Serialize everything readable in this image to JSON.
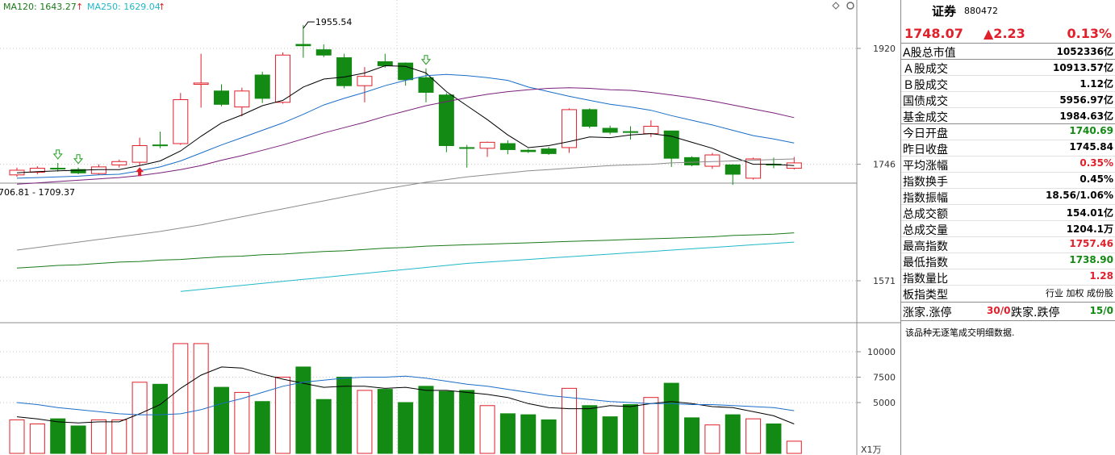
{
  "legend": {
    "ma120_label": "MA120: 1643.27",
    "ma250_label": "MA250: 1629.04",
    "ma120_color": "#1a7a1a",
    "ma250_color": "#20b8c8"
  },
  "chart_icons": [
    "diamond-icon",
    "gear-icon"
  ],
  "price_axis": {
    "ticks": [
      "1920",
      "1746",
      "1571"
    ],
    "tick_values": [
      1920,
      1746,
      1571
    ],
    "ylim": [
      1500,
      2000
    ]
  },
  "annotations": {
    "high_label": "1955.54",
    "range_label": "706.81 - 1709.37"
  },
  "volume_axis": {
    "ticks": [
      "10000",
      "7500",
      "5000"
    ],
    "tick_values": [
      10000,
      7500,
      5000
    ],
    "unit": "X1万"
  },
  "chart_data": {
    "type": "candlestick",
    "candles": [
      {
        "o": 1730,
        "c": 1737,
        "h": 1741,
        "l": 1727,
        "up": true,
        "v": 3300
      },
      {
        "o": 1734,
        "c": 1740,
        "h": 1743,
        "l": 1731,
        "up": true,
        "v": 2900
      },
      {
        "o": 1740,
        "c": 1740,
        "h": 1748,
        "l": 1735,
        "up": false,
        "v": 3400
      },
      {
        "o": 1738,
        "c": 1733,
        "h": 1741,
        "l": 1731,
        "up": false,
        "v": 2700
      },
      {
        "o": 1732,
        "c": 1742,
        "h": 1746,
        "l": 1730,
        "up": true,
        "v": 3300
      },
      {
        "o": 1745,
        "c": 1750,
        "h": 1753,
        "l": 1741,
        "up": true,
        "v": 3300
      },
      {
        "o": 1749,
        "c": 1774,
        "h": 1786,
        "l": 1744,
        "up": true,
        "v": 7000
      },
      {
        "o": 1775,
        "c": 1775,
        "h": 1795,
        "l": 1770,
        "up": false,
        "v": 6800
      },
      {
        "o": 1777,
        "c": 1843,
        "h": 1853,
        "l": 1775,
        "up": true,
        "v": 10800
      },
      {
        "o": 1866,
        "c": 1868,
        "h": 1912,
        "l": 1831,
        "up": true,
        "v": 10800
      },
      {
        "o": 1856,
        "c": 1836,
        "h": 1866,
        "l": 1833,
        "up": false,
        "v": 6500
      },
      {
        "o": 1832,
        "c": 1856,
        "h": 1861,
        "l": 1818,
        "up": true,
        "v": 6000
      },
      {
        "o": 1880,
        "c": 1845,
        "h": 1885,
        "l": 1838,
        "up": false,
        "v": 5100
      },
      {
        "o": 1839,
        "c": 1910,
        "h": 1914,
        "l": 1837,
        "up": true,
        "v": 7500
      },
      {
        "o": 1924,
        "c": 1926,
        "h": 1955,
        "l": 1906,
        "up": false,
        "v": 8500
      },
      {
        "o": 1918,
        "c": 1910,
        "h": 1926,
        "l": 1907,
        "up": false,
        "v": 5300
      },
      {
        "o": 1906,
        "c": 1864,
        "h": 1912,
        "l": 1860,
        "up": false,
        "v": 7500
      },
      {
        "o": 1864,
        "c": 1878,
        "h": 1892,
        "l": 1839,
        "up": true,
        "v": 6200
      },
      {
        "o": 1900,
        "c": 1894,
        "h": 1912,
        "l": 1891,
        "up": false,
        "v": 6300
      },
      {
        "o": 1898,
        "c": 1873,
        "h": 1899,
        "l": 1864,
        "up": false,
        "v": 5000
      },
      {
        "o": 1876,
        "c": 1854,
        "h": 1890,
        "l": 1839,
        "up": false,
        "v": 6600
      },
      {
        "o": 1850,
        "c": 1774,
        "h": 1853,
        "l": 1764,
        "up": false,
        "v": 6100
      },
      {
        "o": 1771,
        "c": 1771,
        "h": 1775,
        "l": 1741,
        "up": false,
        "v": 6200
      },
      {
        "o": 1770,
        "c": 1779,
        "h": 1780,
        "l": 1757,
        "up": true,
        "v": 4700
      },
      {
        "o": 1777,
        "c": 1768,
        "h": 1782,
        "l": 1761,
        "up": false,
        "v": 3900
      },
      {
        "o": 1767,
        "c": 1765,
        "h": 1769,
        "l": 1763,
        "up": false,
        "v": 3800
      },
      {
        "o": 1769,
        "c": 1762,
        "h": 1772,
        "l": 1760,
        "up": false,
        "v": 3300
      },
      {
        "o": 1771,
        "c": 1828,
        "h": 1830,
        "l": 1763,
        "up": true,
        "v": 6400
      },
      {
        "o": 1828,
        "c": 1803,
        "h": 1830,
        "l": 1800,
        "up": false,
        "v": 4700
      },
      {
        "o": 1800,
        "c": 1794,
        "h": 1804,
        "l": 1791,
        "up": false,
        "v": 3600
      },
      {
        "o": 1795,
        "c": 1795,
        "h": 1803,
        "l": 1783,
        "up": false,
        "v": 4800
      },
      {
        "o": 1792,
        "c": 1803,
        "h": 1812,
        "l": 1787,
        "up": true,
        "v": 5500
      },
      {
        "o": 1796,
        "c": 1755,
        "h": 1796,
        "l": 1742,
        "up": false,
        "v": 6900
      },
      {
        "o": 1756,
        "c": 1745,
        "h": 1758,
        "l": 1743,
        "up": false,
        "v": 3500
      },
      {
        "o": 1743,
        "c": 1760,
        "h": 1763,
        "l": 1739,
        "up": true,
        "v": 2800
      },
      {
        "o": 1745,
        "c": 1731,
        "h": 1746,
        "l": 1715,
        "up": false,
        "v": 3800
      },
      {
        "o": 1725,
        "c": 1754,
        "h": 1756,
        "l": 1723,
        "up": true,
        "v": 3400
      },
      {
        "o": 1746,
        "c": 1745,
        "h": 1756,
        "l": 1740,
        "up": false,
        "v": 2900
      },
      {
        "o": 1740,
        "c": 1748,
        "h": 1757,
        "l": 1738,
        "up": true,
        "v": 1200
      }
    ],
    "ma_price": [
      {
        "name": "MA5",
        "color": "#000000",
        "values": [
          1733,
          1735,
          1736,
          1737,
          1738,
          1738,
          1744,
          1751,
          1766,
          1788,
          1808,
          1820,
          1834,
          1842,
          1862,
          1874,
          1877,
          1883,
          1894,
          1893,
          1883,
          1855,
          1834,
          1813,
          1790,
          1771,
          1774,
          1780,
          1787,
          1786,
          1790,
          1792,
          1788,
          1779,
          1770,
          1757,
          1746,
          1746,
          1744
        ]
      },
      {
        "name": "MA10",
        "color": "#1a6ec8",
        "values": [
          1725,
          1726,
          1727,
          1728,
          1730,
          1731,
          1736,
          1742,
          1751,
          1763,
          1775,
          1786,
          1797,
          1808,
          1821,
          1835,
          1845,
          1854,
          1864,
          1872,
          1879,
          1881,
          1879,
          1876,
          1872,
          1862,
          1855,
          1848,
          1842,
          1836,
          1832,
          1827,
          1819,
          1812,
          1805,
          1797,
          1789,
          1784,
          1778
        ]
      },
      {
        "name": "MA20",
        "color": "#7a1f7a",
        "values": [
          1716,
          1718,
          1720,
          1722,
          1724,
          1726,
          1729,
          1733,
          1738,
          1744,
          1752,
          1759,
          1767,
          1775,
          1784,
          1793,
          1801,
          1809,
          1818,
          1826,
          1834,
          1840,
          1846,
          1851,
          1855,
          1858,
          1860,
          1861,
          1860,
          1858,
          1857,
          1854,
          1850,
          1846,
          1841,
          1835,
          1829,
          1823,
          1816
        ]
      },
      {
        "name": "MA60",
        "color": "#8c8c8c",
        "values": [
          1617,
          1621,
          1625,
          1629,
          1633,
          1637,
          1641,
          1645,
          1650,
          1655,
          1661,
          1667,
          1673,
          1679,
          1685,
          1691,
          1697,
          1703,
          1709,
          1714,
          1719,
          1723,
          1727,
          1730,
          1733,
          1736,
          1738,
          1740,
          1742,
          1744,
          1745,
          1746,
          1748,
          1749,
          1750,
          1751,
          1752,
          1753,
          1754
        ]
      },
      {
        "name": "MA120",
        "color": "#1a7a1a",
        "values": [
          1590,
          1592,
          1594,
          1595,
          1597,
          1599,
          1600,
          1602,
          1603,
          1605,
          1607,
          1608,
          1610,
          1611,
          1613,
          1615,
          1616,
          1618,
          1620,
          1621,
          1623,
          1624,
          1625,
          1626,
          1627,
          1628,
          1629,
          1630,
          1631,
          1632,
          1633,
          1634,
          1635,
          1636,
          1637,
          1639,
          1640,
          1641,
          1643
        ]
      },
      {
        "name": "MA250",
        "color": "#20b8c8",
        "values": [
          null,
          null,
          null,
          null,
          null,
          null,
          null,
          null,
          1555,
          1558,
          1561,
          1564,
          1567,
          1570,
          1573,
          1576,
          1579,
          1582,
          1585,
          1588,
          1591,
          1594,
          1597,
          1599,
          1601,
          1603,
          1605,
          1607,
          1609,
          1611,
          1613,
          1615,
          1617,
          1619,
          1621,
          1623,
          1625,
          1627,
          1629
        ]
      }
    ],
    "ma_volume": [
      {
        "name": "VMA5",
        "color": "#000000",
        "values": [
          3600,
          3400,
          3100,
          3000,
          3100,
          3100,
          3900,
          4800,
          6400,
          7700,
          8500,
          8400,
          7800,
          7300,
          6900,
          6500,
          6600,
          6600,
          6400,
          6500,
          6200,
          6200,
          6000,
          5800,
          5500,
          4900,
          4500,
          4400,
          4400,
          4700,
          4600,
          4900,
          5100,
          4900,
          4600,
          4500,
          4100,
          3700,
          2900
        ]
      },
      {
        "name": "VMA10",
        "color": "#1a6ec8",
        "values": [
          5000,
          4800,
          4500,
          4300,
          4100,
          3900,
          3800,
          3800,
          3900,
          4300,
          4900,
          5400,
          6000,
          6600,
          7000,
          7200,
          7400,
          7500,
          7500,
          7600,
          7400,
          7100,
          6800,
          6600,
          6300,
          6000,
          5700,
          5500,
          5300,
          5100,
          5000,
          4900,
          4900,
          4800,
          4800,
          4700,
          4600,
          4500,
          4200
        ]
      }
    ],
    "signals": [
      {
        "i": 2,
        "type": "buy-hollow",
        "color": "#20a020"
      },
      {
        "i": 3,
        "type": "buy-hollow",
        "color": "#20a020"
      },
      {
        "i": 6,
        "type": "buy",
        "color": "#e0202a"
      },
      {
        "i": 20,
        "type": "sell-hollow",
        "color": "#20a020"
      }
    ]
  },
  "info": {
    "name": "证券",
    "code": "880472",
    "price": "1748.07",
    "change": "▲2.23",
    "pct": "0.13%",
    "rows": [
      {
        "k": "A股总市值",
        "v": "1052336亿",
        "c": ""
      },
      {
        "k": "Ａ股成交",
        "v": "10913.57亿",
        "c": ""
      },
      {
        "k": "Ｂ股成交",
        "v": "1.12亿",
        "c": ""
      },
      {
        "k": "国债成交",
        "v": "5956.97亿",
        "c": ""
      },
      {
        "k": "基金成交",
        "v": "1984.63亿",
        "c": ""
      },
      {
        "k": "今日开盘",
        "v": "1740.69",
        "c": "green"
      },
      {
        "k": "昨日收盘",
        "v": "1745.84",
        "c": ""
      },
      {
        "k": "平均涨幅",
        "v": "0.35%",
        "c": "red"
      },
      {
        "k": "指数换手",
        "v": "0.45%",
        "c": ""
      },
      {
        "k": "指数振幅",
        "v": "18.56/1.06%",
        "c": ""
      },
      {
        "k": "总成交额",
        "v": "154.01亿",
        "c": ""
      },
      {
        "k": "总成交量",
        "v": "1204.1万",
        "c": ""
      },
      {
        "k": "最高指数",
        "v": "1757.46",
        "c": "red"
      },
      {
        "k": "最低指数",
        "v": "1738.90",
        "c": "green"
      },
      {
        "k": "指数量比",
        "v": "1.28",
        "c": "red"
      }
    ],
    "board_type_label": "板指类型",
    "board_type_value": "行业 加权 成份股",
    "rise_label": "涨家.涨停",
    "rise_value": "30/0",
    "fall_label": "跌家.跌停",
    "fall_value": "15/0",
    "note": "该品种无逐笔成交明细数据."
  }
}
